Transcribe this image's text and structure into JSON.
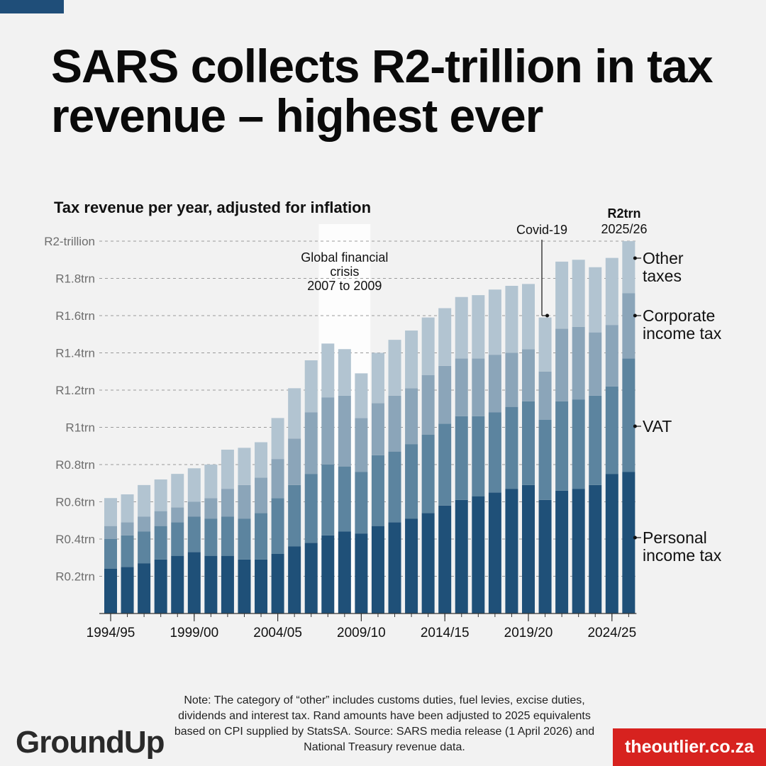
{
  "headline": "SARS collects R2-trillion in tax revenue – highest ever",
  "chart_data": {
    "type": "bar",
    "stacked": true,
    "title": "Tax revenue per year, adjusted for inflation",
    "xlabel": "",
    "ylabel": "",
    "ylim": [
      0,
      2.0
    ],
    "y_ticks": [
      {
        "value": 0.2,
        "label": "R0.2trn"
      },
      {
        "value": 0.4,
        "label": "R0.4trn"
      },
      {
        "value": 0.6,
        "label": "R0.6trn"
      },
      {
        "value": 0.8,
        "label": "R0.8trn"
      },
      {
        "value": 1.0,
        "label": "R1trn"
      },
      {
        "value": 1.2,
        "label": "R1.2trn"
      },
      {
        "value": 1.4,
        "label": "R1.4trn"
      },
      {
        "value": 1.6,
        "label": "R1.6trn"
      },
      {
        "value": 1.8,
        "label": "R1.8trn"
      },
      {
        "value": 2.0,
        "label": "R2-trillion"
      }
    ],
    "x_tick_labels": [
      {
        "index": 0,
        "label": "1994/95"
      },
      {
        "index": 5,
        "label": "1999/00"
      },
      {
        "index": 10,
        "label": "2004/05"
      },
      {
        "index": 15,
        "label": "2009/10"
      },
      {
        "index": 20,
        "label": "2014/15"
      },
      {
        "index": 25,
        "label": "2019/20"
      },
      {
        "index": 30,
        "label": "2024/25"
      }
    ],
    "categories": [
      "1994/95",
      "1995/96",
      "1996/97",
      "1997/98",
      "1998/99",
      "1999/00",
      "2000/01",
      "2001/02",
      "2002/03",
      "2003/04",
      "2004/05",
      "2005/06",
      "2006/07",
      "2007/08",
      "2008/09",
      "2009/10",
      "2010/11",
      "2011/12",
      "2012/13",
      "2013/14",
      "2014/15",
      "2015/16",
      "2016/17",
      "2017/18",
      "2018/19",
      "2019/20",
      "2020/21",
      "2021/22",
      "2022/23",
      "2023/24",
      "2024/25",
      "2025/26"
    ],
    "series": [
      {
        "name": "Personal income tax",
        "color": "#1f5078",
        "values": [
          0.24,
          0.25,
          0.27,
          0.29,
          0.31,
          0.33,
          0.31,
          0.31,
          0.29,
          0.29,
          0.32,
          0.36,
          0.38,
          0.42,
          0.44,
          0.43,
          0.47,
          0.49,
          0.51,
          0.54,
          0.58,
          0.61,
          0.63,
          0.65,
          0.67,
          0.69,
          0.61,
          0.66,
          0.67,
          0.69,
          0.75,
          0.76
        ]
      },
      {
        "name": "VAT",
        "color": "#5c849f",
        "values": [
          0.16,
          0.17,
          0.17,
          0.18,
          0.18,
          0.19,
          0.2,
          0.21,
          0.22,
          0.25,
          0.3,
          0.33,
          0.37,
          0.38,
          0.35,
          0.33,
          0.38,
          0.38,
          0.4,
          0.42,
          0.44,
          0.45,
          0.43,
          0.43,
          0.44,
          0.45,
          0.43,
          0.48,
          0.48,
          0.48,
          0.47,
          0.61
        ]
      },
      {
        "name": "Corporate income tax",
        "color": "#8ba5b9",
        "values": [
          0.07,
          0.07,
          0.08,
          0.08,
          0.08,
          0.08,
          0.11,
          0.15,
          0.18,
          0.19,
          0.21,
          0.25,
          0.33,
          0.36,
          0.38,
          0.29,
          0.28,
          0.3,
          0.3,
          0.32,
          0.31,
          0.31,
          0.31,
          0.31,
          0.29,
          0.28,
          0.26,
          0.39,
          0.39,
          0.34,
          0.33,
          0.35
        ]
      },
      {
        "name": "Other taxes",
        "color": "#b2c4d1",
        "values": [
          0.15,
          0.15,
          0.17,
          0.17,
          0.18,
          0.18,
          0.18,
          0.21,
          0.2,
          0.19,
          0.22,
          0.27,
          0.28,
          0.29,
          0.25,
          0.24,
          0.27,
          0.3,
          0.31,
          0.31,
          0.31,
          0.33,
          0.34,
          0.35,
          0.36,
          0.35,
          0.29,
          0.36,
          0.36,
          0.35,
          0.36,
          0.28
        ]
      }
    ],
    "legend": [
      {
        "label": "Other\ntaxes",
        "series_index": 3
      },
      {
        "label": "Corporate\nincome tax",
        "series_index": 2
      },
      {
        "label": "VAT",
        "series_index": 1
      },
      {
        "label": "Personal\nincome tax",
        "series_index": 0
      }
    ],
    "annotations": {
      "gfc": {
        "label": "Global financial\ncrisis\n2007 to 2009",
        "start_index": 12.5,
        "end_index": 15.5
      },
      "covid": {
        "label": "Covid-19",
        "index": 26
      },
      "peak": {
        "value_label": "R2trn",
        "year_label": "2025/26",
        "index": 31
      }
    }
  },
  "note": "Note: The category of “other” includes customs duties, fuel levies, excise duties, dividends and interest tax. Rand amounts have been adjusted to 2025 equivalents based on CPI supplied by StatsSA. Source: SARS media release (1 April 2026) and National Treasury revenue data.",
  "logos": {
    "left_main": "Gr",
    "left_mid": "undUp",
    "left_brand": "GroundUp",
    "right": "theoutlier.co.za"
  }
}
